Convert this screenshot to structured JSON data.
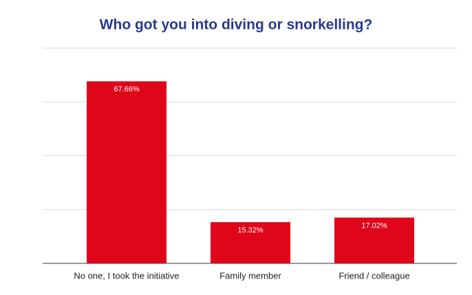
{
  "chart_data": {
    "type": "bar",
    "title": "Who got you into diving or snorkelling?",
    "categories": [
      "No one, I took the initiative",
      "Family member",
      "Friend / colleague"
    ],
    "values": [
      67.66,
      15.32,
      17.02
    ],
    "value_labels": [
      "67.66%",
      "15.32%",
      "17.02%"
    ],
    "color": "#e0061a",
    "ylim": [
      0,
      80
    ],
    "yticks": [
      0,
      20,
      40,
      60,
      80
    ],
    "grid": true
  }
}
